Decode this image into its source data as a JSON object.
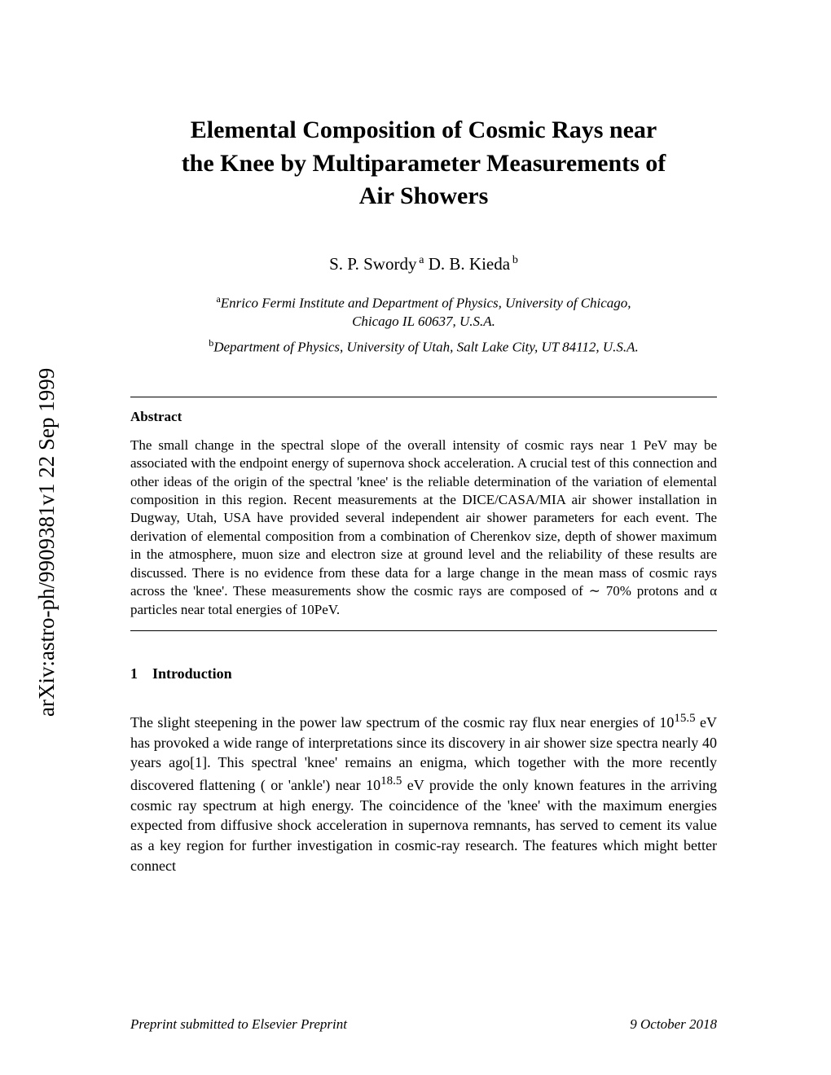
{
  "arxiv": {
    "identifier": "arXiv:astro-ph/9909381v1  22 Sep 1999"
  },
  "title": {
    "line1": "Elemental Composition of Cosmic Rays near",
    "line2": "the Knee by Multiparameter Measurements of",
    "line3": "Air Showers"
  },
  "authors": {
    "author1": "S. P. Swordy",
    "sup1": "a",
    "author2": "D. B. Kieda",
    "sup2": "b"
  },
  "affiliations": {
    "a_sup": "a",
    "a_text1": "Enrico Fermi Institute and Department of Physics, University of Chicago,",
    "a_text2": "Chicago IL 60637, U.S.A.",
    "b_sup": "b",
    "b_text": "Department of Physics, University of Utah, Salt Lake City, UT 84112, U.S.A."
  },
  "abstract": {
    "heading": "Abstract",
    "body": "The small change in the spectral slope of the overall intensity of cosmic rays near 1 PeV may be associated with the endpoint energy of supernova shock acceleration. A crucial test of this connection and other ideas of the origin of the spectral 'knee' is the reliable determination of the variation of elemental composition in this region. Recent measurements at the DICE/CASA/MIA air shower installation in Dugway, Utah, USA have provided several independent air shower parameters for each event. The derivation of elemental composition from a combination of Cherenkov size, depth of shower maximum in the atmosphere, muon size and electron size at ground level and the reliability of these results are discussed. There is no evidence from these data for a large change in the mean mass of cosmic rays across the 'knee'. These measurements show the cosmic rays are composed of ∼ 70% protons and α particles near total energies of 10PeV."
  },
  "section": {
    "number": "1",
    "title": "Introduction"
  },
  "body": {
    "para1_part1": "The slight steepening in the power law spectrum of the cosmic ray flux near energies of 10",
    "para1_exp1": "15.5",
    "para1_part2": " eV has provoked a wide range of interpretations since its discovery in air shower size spectra nearly 40 years ago[1]. This spectral 'knee' remains an enigma, which together with the more recently discovered flattening ( or 'ankle') near 10",
    "para1_exp2": "18.5",
    "para1_part3": " eV provide the only known features in the arriving cosmic ray spectrum at high energy. The coincidence of the 'knee' with the maximum energies expected from diffusive shock acceleration in supernova remnants, has served to cement its value as a key region for further investigation in cosmic-ray research. The features which might better connect"
  },
  "footer": {
    "left": "Preprint submitted to Elsevier Preprint",
    "right": "9 October 2018"
  },
  "style": {
    "background": "#ffffff",
    "text_color": "#000000",
    "title_fontsize": 30,
    "author_fontsize": 21,
    "affil_fontsize": 17,
    "abstract_fontsize": 17,
    "body_fontsize": 18,
    "arxiv_fontsize": 27
  }
}
